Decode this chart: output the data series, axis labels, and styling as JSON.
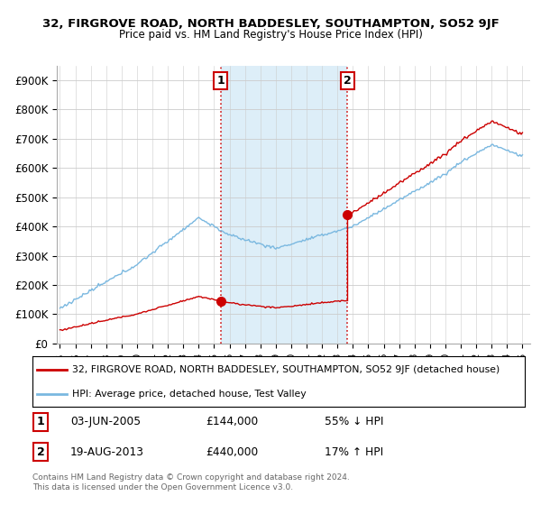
{
  "title": "32, FIRGROVE ROAD, NORTH BADDESLEY, SOUTHAMPTON, SO52 9JF",
  "subtitle": "Price paid vs. HM Land Registry's House Price Index (HPI)",
  "hpi_color": "#7ab8e0",
  "hpi_fill_color": "#ddeef8",
  "price_color": "#cc0000",
  "marker_color": "#cc0000",
  "dashed_color": "#cc0000",
  "bg_color": "#ffffff",
  "ylim": [
    0,
    950000
  ],
  "yticks": [
    0,
    100000,
    200000,
    300000,
    400000,
    500000,
    600000,
    700000,
    800000,
    900000
  ],
  "ytick_labels": [
    "£0",
    "£100K",
    "£200K",
    "£300K",
    "£400K",
    "£500K",
    "£600K",
    "£700K",
    "£800K",
    "£900K"
  ],
  "xlim_start": 1994.8,
  "xlim_end": 2025.5,
  "point1_x": 2005.42,
  "point1_y": 144000,
  "point1_label": "1",
  "point1_date": "03-JUN-2005",
  "point1_price": "£144,000",
  "point1_hpi": "55% ↓ HPI",
  "point2_x": 2013.63,
  "point2_y": 440000,
  "point2_label": "2",
  "point2_date": "19-AUG-2013",
  "point2_price": "£440,000",
  "point2_hpi": "17% ↑ HPI",
  "legend_line1": "32, FIRGROVE ROAD, NORTH BADDESLEY, SOUTHAMPTON, SO52 9JF (detached house)",
  "legend_line2": "HPI: Average price, detached house, Test Valley",
  "footer": "Contains HM Land Registry data © Crown copyright and database right 2024.\nThis data is licensed under the Open Government Licence v3.0."
}
